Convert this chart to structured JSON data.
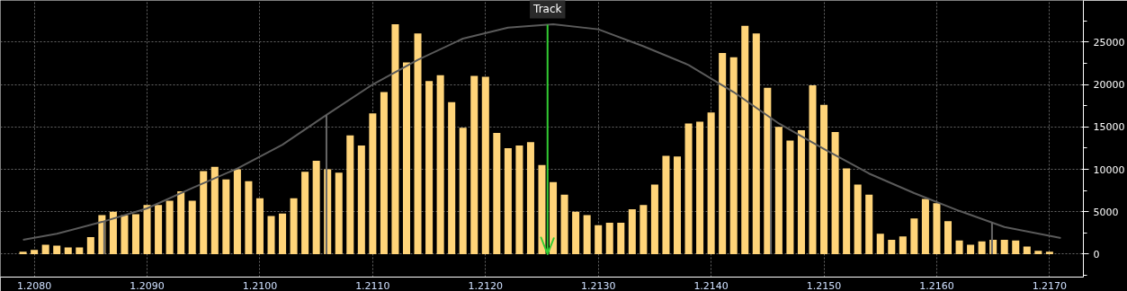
{
  "chart_data": {
    "type": "histogram",
    "series": [
      {
        "color": "#ffd479",
        "bins": [
          1.20785,
          1.20795,
          1.20805,
          1.20815,
          1.20825,
          1.20835,
          1.20845,
          1.20855,
          1.20865,
          1.20875,
          1.20885,
          1.20895,
          1.20905,
          1.20915,
          1.20925,
          1.20935,
          1.20945,
          1.20955,
          1.20965,
          1.20975,
          1.20985,
          1.20995,
          1.21005,
          1.21015,
          1.21025,
          1.21035,
          1.21045,
          1.21055,
          1.21065,
          1.21075,
          1.21085,
          1.21095,
          1.21105,
          1.21115,
          1.21125,
          1.21135,
          1.21145,
          1.21155,
          1.21165,
          1.21175,
          1.21185,
          1.21195,
          1.21205,
          1.21215,
          1.21225,
          1.21235,
          1.21245,
          1.21255,
          1.21265,
          1.21275,
          1.21285,
          1.21295,
          1.21305,
          1.21315,
          1.21325,
          1.21335,
          1.21345,
          1.21355,
          1.21365,
          1.21375,
          1.21385,
          1.21395,
          1.21405,
          1.21415,
          1.21425,
          1.21435,
          1.21445,
          1.21455,
          1.21465,
          1.21475,
          1.21485,
          1.21495,
          1.21505,
          1.21515,
          1.21525,
          1.21535,
          1.21545,
          1.21555,
          1.21565,
          1.21575,
          1.21585,
          1.21595,
          1.21605,
          1.21615,
          1.21625,
          1.21635,
          1.21645,
          1.21655,
          1.21665,
          1.21675,
          1.21685,
          1.21695,
          1.21705,
          1.21715
        ],
        "values": [
          300,
          500,
          1100,
          1000,
          800,
          800,
          2000,
          4600,
          5000,
          4600,
          4700,
          5800,
          5800,
          6300,
          7400,
          6300,
          9800,
          10300,
          8800,
          10000,
          8600,
          6600,
          4500,
          4800,
          6600,
          9700,
          11000,
          10000,
          9600,
          14000,
          12800,
          16600,
          19100,
          27100,
          22600,
          26000,
          20400,
          21100,
          17900,
          14900,
          21000,
          20900,
          14300,
          12500,
          12800,
          13200,
          10500,
          8500,
          7000,
          5000,
          4600,
          3400,
          3700,
          3700,
          5300,
          5800,
          8200,
          11600,
          11500,
          15400,
          15600,
          16700,
          23700,
          23200,
          26900,
          26000,
          19600,
          15000,
          13400,
          14600,
          19900,
          17600,
          14400,
          10100,
          8200,
          7000,
          2400,
          1700,
          2100,
          4200,
          6500,
          6000,
          3900,
          1600,
          1100,
          1500,
          1700,
          1700,
          1600,
          900,
          400,
          300,
          0
        ]
      },
      {
        "type": "line",
        "color": "#5a5a5a",
        "x": [
          1.2079,
          1.2082,
          1.2086,
          1.209,
          1.2094,
          1.2098,
          1.2102,
          1.2106,
          1.211,
          1.2114,
          1.2118,
          1.2122,
          1.2126,
          1.213,
          1.2134,
          1.2138,
          1.2142,
          1.2146,
          1.215,
          1.2154,
          1.2158,
          1.2162,
          1.2166,
          1.2171
        ],
        "values": [
          1700,
          2400,
          3800,
          5400,
          7800,
          10100,
          12900,
          16500,
          20000,
          22900,
          25400,
          26700,
          27100,
          26500,
          24500,
          22300,
          19100,
          15400,
          12400,
          9500,
          7200,
          5100,
          3200,
          1900
        ]
      }
    ],
    "ref_lines": [
      {
        "axis": "x",
        "value": 1.20862,
        "color": "#666666"
      },
      {
        "axis": "x",
        "value": 1.21059,
        "color": "#666666"
      },
      {
        "axis": "x",
        "value": 1.21255,
        "color": "#33cc33",
        "label": "Track"
      },
      {
        "axis": "x",
        "value": 1.21453,
        "color": "#666666"
      },
      {
        "axis": "x",
        "value": 1.21649,
        "color": "#666666"
      }
    ],
    "xlim": [
      1.2077,
      1.2173
    ],
    "xticks": [
      {
        "value": 1.208,
        "label": "1.2080"
      },
      {
        "value": 1.209,
        "label": "1.2090"
      },
      {
        "value": 1.21,
        "label": "1.2100"
      },
      {
        "value": 1.211,
        "label": "1.2110"
      },
      {
        "value": 1.212,
        "label": "1.2120"
      },
      {
        "value": 1.213,
        "label": "1.2130"
      },
      {
        "value": 1.214,
        "label": "1.2140"
      },
      {
        "value": 1.215,
        "label": "1.2150"
      },
      {
        "value": 1.216,
        "label": "1.2160"
      },
      {
        "value": 1.217,
        "label": "1.2170"
      }
    ],
    "ylim": [
      -2700,
      29900
    ],
    "yticks": [
      0,
      5000,
      10000,
      15000,
      20000,
      25000
    ],
    "grid": true
  }
}
